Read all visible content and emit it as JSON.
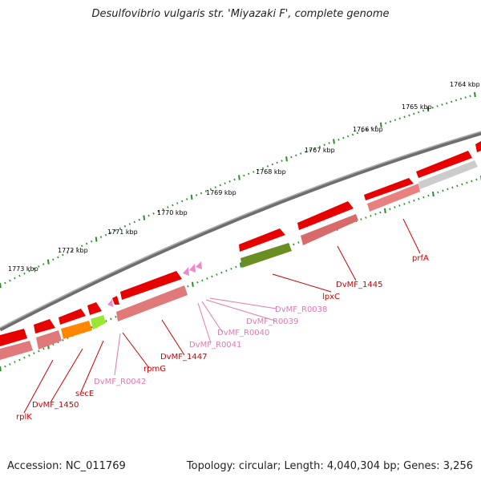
{
  "title": "Desulfovibrio vulgaris str. 'Miyazaki F', complete genome",
  "footer": {
    "accession": "Accession: NC_011769",
    "summary": "Topology: circular; Length: 4,040,304 bp; Genes: 3,256"
  },
  "colors": {
    "backbone": "#7a7a7a",
    "tick": "#2d8a2d",
    "gene_red": "#e60000",
    "gene_red_light": "#ff4040",
    "gene_pink_muted": "#d96a6a",
    "gene_orange": "#ff8800",
    "gene_lime": "#99e633",
    "gene_olive": "#6b8e23",
    "gene_gray": "#bbbbbb",
    "rrna_pink": "#ee88cc",
    "label_red": "#cc0000",
    "label_pink": "#e07ab0"
  },
  "scale_labels": [
    "1764 kbp",
    "1765 kbp",
    "1766 kbp",
    "1767 kbp",
    "1768 kbp",
    "1769 kbp",
    "1770 kbp",
    "1771 kbp",
    "1772 kbp",
    "1773 kbp"
  ],
  "gene_labels": [
    {
      "text": "prfA",
      "kind": "protein"
    },
    {
      "text": "DvMF_1445",
      "kind": "protein"
    },
    {
      "text": "lpxC",
      "kind": "protein"
    },
    {
      "text": "DvMF_R0038",
      "kind": "rna"
    },
    {
      "text": "DvMF_R0039",
      "kind": "rna"
    },
    {
      "text": "DvMF_R0040",
      "kind": "rna"
    },
    {
      "text": "DvMF_R0041",
      "kind": "rna"
    },
    {
      "text": "DvMF_1447",
      "kind": "protein"
    },
    {
      "text": "rpmG",
      "kind": "protein"
    },
    {
      "text": "DvMF_R0042",
      "kind": "rna"
    },
    {
      "text": "secE",
      "kind": "protein"
    },
    {
      "text": "DvMF_1450",
      "kind": "protein"
    },
    {
      "text": "rplK",
      "kind": "protein"
    }
  ]
}
